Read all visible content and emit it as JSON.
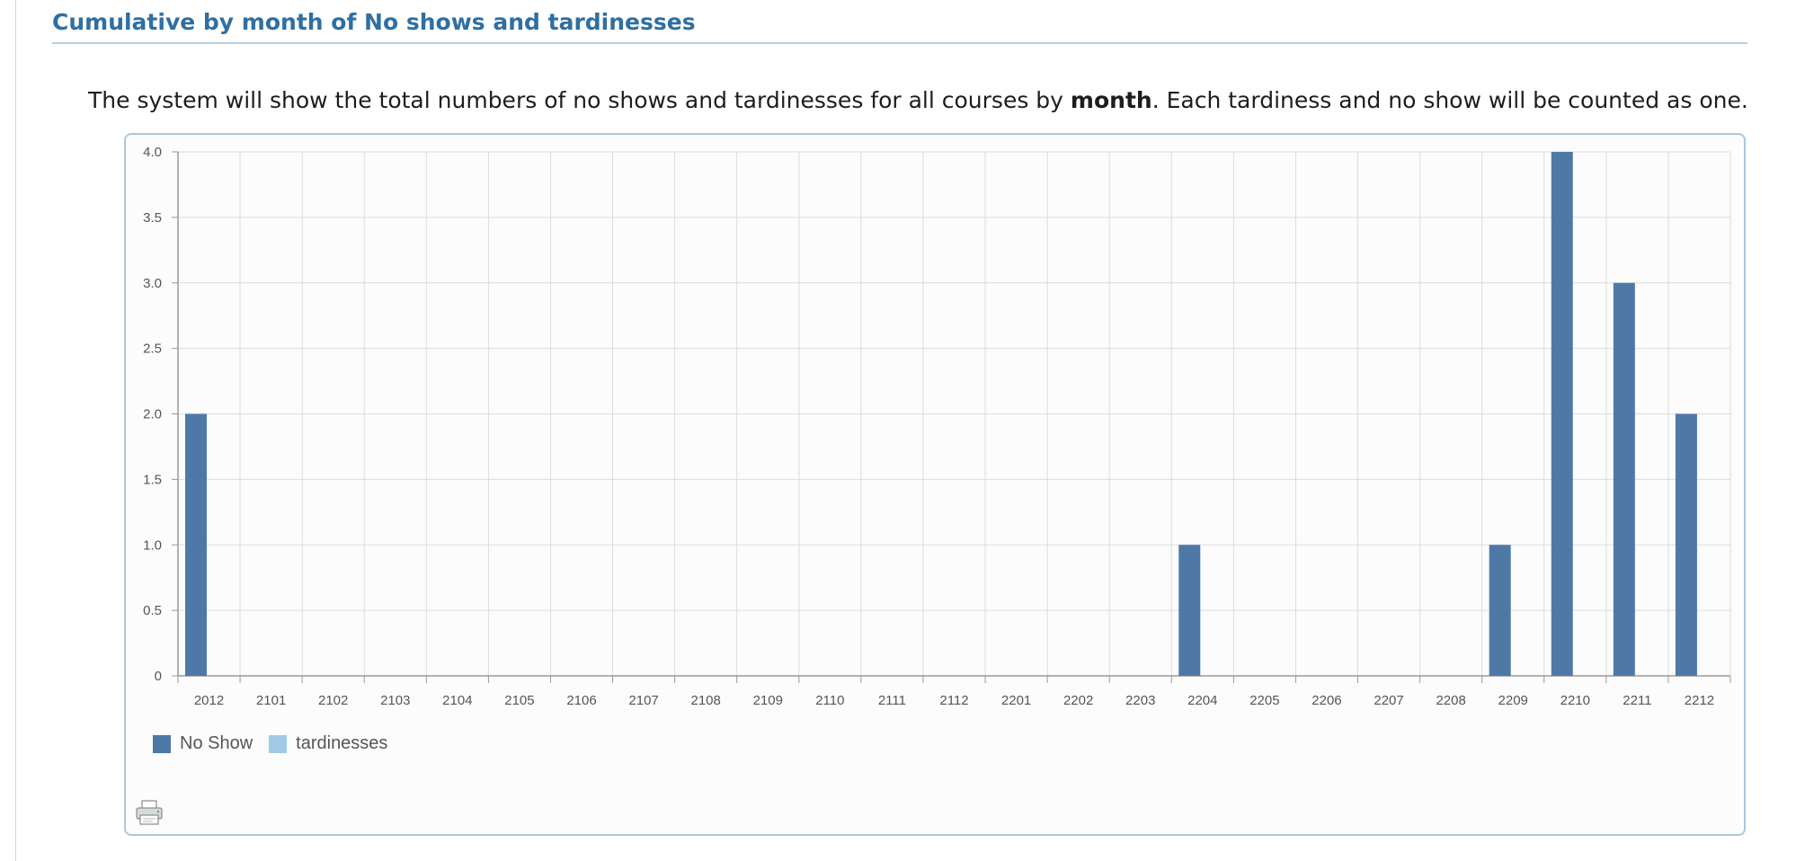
{
  "section": {
    "title": "Cumulative by month of No shows and tardinesses"
  },
  "description": {
    "before": "The system will show the total numbers of no shows and tardinesses for all courses by ",
    "bold": "month",
    "after": ". Each tardiness and no show will be counted as one."
  },
  "print": {
    "icon": "printer-icon"
  },
  "chart_data": {
    "type": "bar",
    "categories": [
      "2012",
      "2101",
      "2102",
      "2103",
      "2104",
      "2105",
      "2106",
      "2107",
      "2108",
      "2109",
      "2110",
      "2111",
      "2112",
      "2201",
      "2202",
      "2203",
      "2204",
      "2205",
      "2206",
      "2207",
      "2208",
      "2209",
      "2210",
      "2211",
      "2212"
    ],
    "series": [
      {
        "name": "No Show",
        "color": "#4e79a7",
        "values": [
          2,
          0,
          0,
          0,
          0,
          0,
          0,
          0,
          0,
          0,
          0,
          0,
          0,
          0,
          0,
          0,
          1,
          0,
          0,
          0,
          0,
          1,
          4,
          3,
          2
        ]
      },
      {
        "name": "tardinesses",
        "color": "#a0cbe8",
        "values": [
          0,
          0,
          0,
          0,
          0,
          0,
          0,
          0,
          0,
          0,
          0,
          0,
          0,
          0,
          0,
          0,
          0,
          0,
          0,
          0,
          0,
          0,
          0,
          0,
          0
        ]
      }
    ],
    "ylim": [
      0,
      4.0
    ],
    "yticks": [
      "0",
      "0.5",
      "1.0",
      "1.5",
      "2.0",
      "2.5",
      "3.0",
      "3.5",
      "4.0"
    ],
    "grid": true,
    "legend": "bottom-left"
  }
}
